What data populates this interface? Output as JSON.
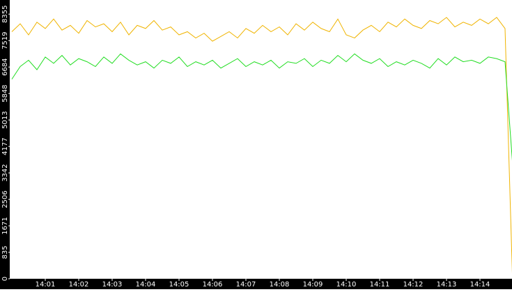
{
  "chart_data": {
    "type": "line",
    "x": [
      0,
      0.25,
      0.5,
      0.75,
      1,
      1.25,
      1.5,
      1.75,
      2,
      2.25,
      2.5,
      2.75,
      3,
      3.25,
      3.5,
      3.75,
      4,
      4.25,
      4.5,
      4.75,
      5,
      5.25,
      5.5,
      5.75,
      6,
      6.25,
      6.5,
      6.75,
      7,
      7.25,
      7.5,
      7.75,
      8,
      8.25,
      8.5,
      8.75,
      9,
      9.25,
      9.5,
      9.75,
      10,
      10.25,
      10.5,
      10.75,
      11,
      11.25,
      11.5,
      11.75,
      12,
      12.25,
      12.5,
      12.75,
      13,
      13.25,
      13.5,
      13.75,
      14,
      14.25,
      14.5,
      14.75,
      14.97
    ],
    "series": [
      {
        "color": "#f0b400",
        "values": [
          7800,
          8050,
          7700,
          8100,
          7900,
          8200,
          7850,
          8000,
          7750,
          8150,
          7950,
          8050,
          7800,
          8100,
          7700,
          8000,
          7900,
          8150,
          7850,
          7950,
          7700,
          7800,
          7600,
          7750,
          7500,
          7650,
          7800,
          7600,
          7900,
          7750,
          8000,
          7800,
          7950,
          7700,
          8050,
          7850,
          8100,
          7900,
          7800,
          8200,
          7700,
          7600,
          7850,
          8000,
          7800,
          8100,
          7950,
          8200,
          8000,
          7900,
          8150,
          8050,
          8250,
          7950,
          8100,
          8000,
          8200,
          8050,
          8250,
          7900,
          100
        ]
      },
      {
        "color": "#22dd22",
        "values": [
          6300,
          6700,
          6900,
          6600,
          7000,
          6800,
          7050,
          6750,
          6950,
          6850,
          6700,
          7000,
          6800,
          7100,
          6900,
          6750,
          6850,
          6650,
          6900,
          6800,
          7000,
          6700,
          6850,
          6750,
          6900,
          6650,
          6800,
          6950,
          6700,
          6850,
          6750,
          6900,
          6650,
          6850,
          6800,
          6950,
          6700,
          6900,
          6800,
          7050,
          6850,
          7100,
          6900,
          6800,
          6950,
          6700,
          6850,
          6750,
          6900,
          6800,
          6650,
          6950,
          6750,
          7000,
          6850,
          6900,
          6800,
          7000,
          6950,
          6850,
          3700
        ]
      }
    ],
    "xlim": [
      0,
      15
    ],
    "xticks": [
      {
        "value": 1,
        "label": "14:01"
      },
      {
        "value": 2,
        "label": "14:02"
      },
      {
        "value": 3,
        "label": "14:03"
      },
      {
        "value": 4,
        "label": "14:04"
      },
      {
        "value": 5,
        "label": "14:05"
      },
      {
        "value": 6,
        "label": "14:06"
      },
      {
        "value": 7,
        "label": "14:07"
      },
      {
        "value": 8,
        "label": "14:08"
      },
      {
        "value": 9,
        "label": "14:09"
      },
      {
        "value": 10,
        "label": "14:10"
      },
      {
        "value": 11,
        "label": "14:11"
      },
      {
        "value": 12,
        "label": "14:12"
      },
      {
        "value": 13,
        "label": "14:13"
      },
      {
        "value": 14,
        "label": "14:14"
      }
    ],
    "ylim": [
      0,
      8800
    ],
    "yticks": [
      0,
      835,
      1671,
      2506,
      3342,
      4177,
      5013,
      5848,
      6684,
      7519,
      8355
    ]
  }
}
